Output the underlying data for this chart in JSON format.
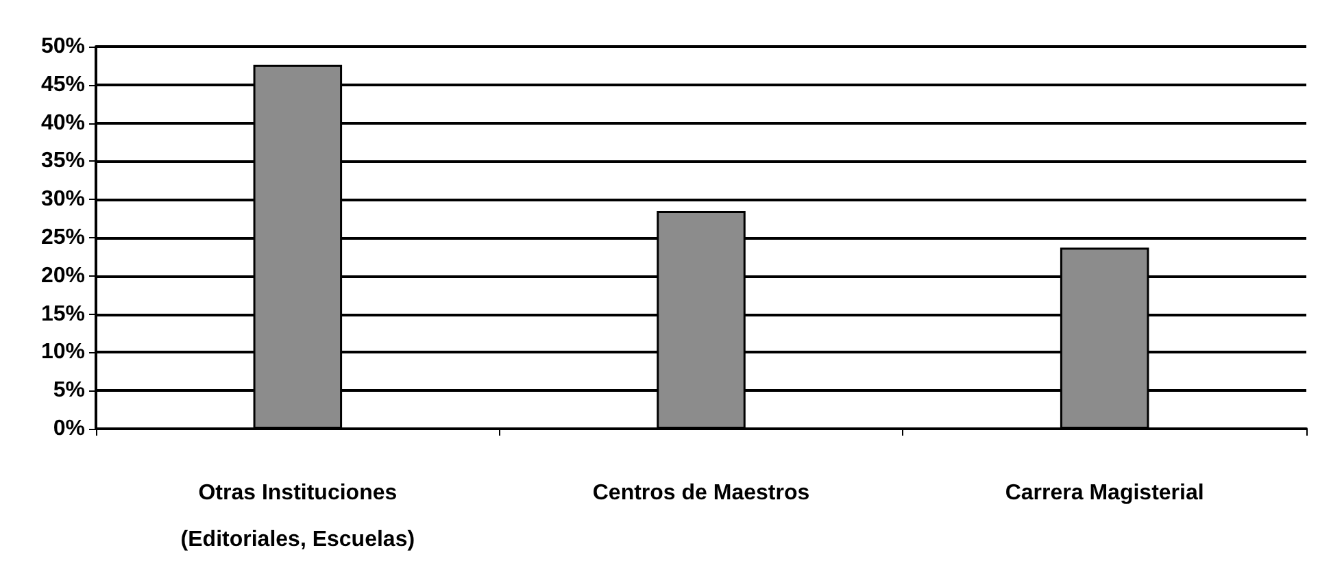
{
  "chart_data": {
    "type": "bar",
    "categories": [
      "Otras Instituciones\n(Editoriales, Escuelas)",
      "Centros de Maestros",
      "Carrera Magisterial"
    ],
    "values": [
      47.6,
      28.5,
      23.7
    ],
    "color": "#8c8c8c",
    "ylim": [
      0,
      50
    ],
    "yticks": [
      {
        "value": 0,
        "label": "0%"
      },
      {
        "value": 5,
        "label": "5%"
      },
      {
        "value": 10,
        "label": "10%"
      },
      {
        "value": 15,
        "label": "15%"
      },
      {
        "value": 20,
        "label": "20%"
      },
      {
        "value": 25,
        "label": "25%"
      },
      {
        "value": 30,
        "label": "30%"
      },
      {
        "value": 35,
        "label": "35%"
      },
      {
        "value": 40,
        "label": "40%"
      },
      {
        "value": 45,
        "label": "45%"
      },
      {
        "value": 50,
        "label": "50%"
      }
    ],
    "grid": true
  }
}
